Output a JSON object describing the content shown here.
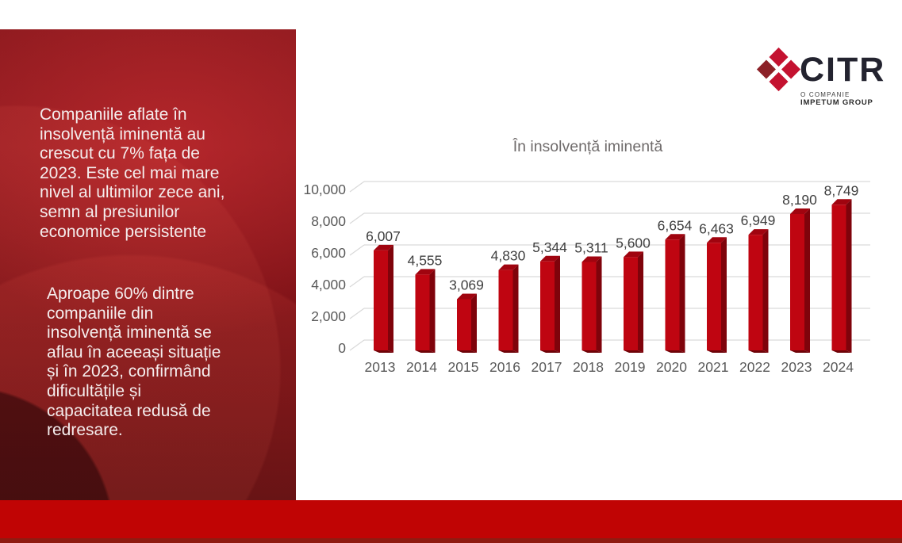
{
  "sidebar": {
    "paragraph1": "Companiile aflate în\ninsolvență iminentă au\ncrescut cu 7% fața de\n2023. Este cel mai mare\nnivel al ultimilor zece ani,\nsemn al presiunilor\neconomice persistente",
    "paragraph2": "Aproape 60% dintre\ncompaniile din\ninsolvență iminentă se\naflau în aceeași situație\nși în 2023, confirmând\ndificultățile și\ncapacitatea redusă de\nredresare."
  },
  "logo": {
    "name": "CITR",
    "tagline1": "O COMPANIE",
    "tagline2": "IMPETUM GROUP",
    "mark_color_bright": "#c41230",
    "mark_color_dark": "#8c2127"
  },
  "chart_data": {
    "type": "bar",
    "style": "3d-column",
    "title": "În insolvență iminentă",
    "categories": [
      "2013",
      "2014",
      "2015",
      "2016",
      "2017",
      "2018",
      "2019",
      "2020",
      "2021",
      "2022",
      "2023",
      "2024"
    ],
    "values": [
      6007,
      4555,
      3069,
      4830,
      5344,
      5311,
      5600,
      6654,
      6463,
      6949,
      8190,
      8749
    ],
    "value_labels": [
      "6,007",
      "4,555",
      "3,069",
      "4,830",
      "5,344",
      "5,311",
      "5,600",
      "6,654",
      "6,463",
      "6,949",
      "8,190",
      "8,749"
    ],
    "xlabel": "",
    "ylabel": "",
    "ylim": [
      0,
      10000
    ],
    "ytick_step": 2000,
    "ytick_labels": [
      "0",
      "2,000",
      "4,000",
      "6,000",
      "8,000",
      "10,000"
    ],
    "grid": true,
    "legend": false,
    "colors": {
      "bar_front": "#bf0511",
      "bar_top": "#a0040f",
      "bar_side": "#7f030b",
      "bar_bottom": "#6e0308",
      "grid": "#d9d9d9",
      "axis_text": "#595959",
      "data_label": "#3f3f3f",
      "title_text": "#6f6b6b"
    }
  },
  "footer": {
    "bar_color": "#c00404",
    "strip_color": "#8e1b11"
  },
  "slide_colors": {
    "sidebar_red_light": "#951d22",
    "sidebar_red_dark": "#570b0e",
    "background": "#ffffff"
  }
}
